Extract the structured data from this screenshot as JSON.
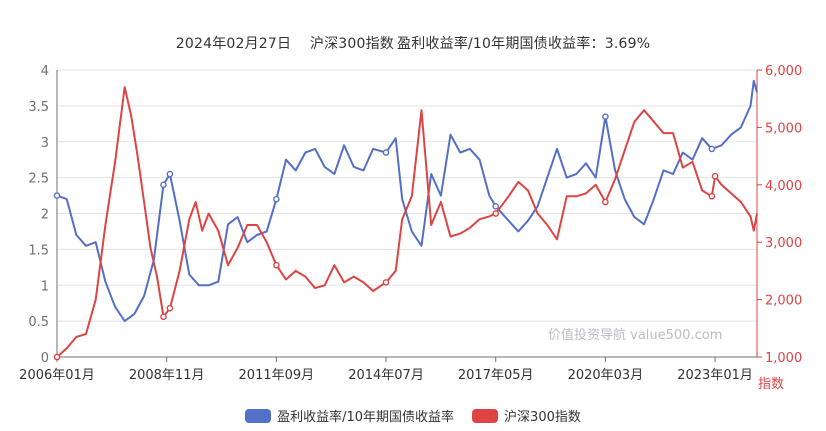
{
  "header": {
    "date": "2024年02月27日",
    "index_label": "沪深300指数",
    "ratio_text": "盈利收益率/10年期国债收益率：3.69%"
  },
  "watermark": "价值投资导航 value500.com",
  "colors": {
    "ratio": "#5470c6",
    "index": "#dd4444",
    "axis": "#6e7079",
    "grid": "#e3e3e3"
  },
  "legend": [
    {
      "name": "盈利收益率/10年期国债收益率",
      "color": "#5470c6"
    },
    {
      "name": "沪深300指数",
      "color": "#dd4444"
    }
  ],
  "chart_data": {
    "type": "line",
    "x_ticks": [
      "2006年01月",
      "2008年11月",
      "2011年09月",
      "2014年07月",
      "2017年05月",
      "2020年03月",
      "2023年01月"
    ],
    "left_axis": {
      "min": 0,
      "max": 4,
      "ticks": [
        "0",
        "0.5",
        "1",
        "1.5",
        "2",
        "2.5",
        "3",
        "3.5",
        "4"
      ]
    },
    "right_axis": {
      "name": "指数",
      "min": 1000,
      "max": 6000,
      "ticks": [
        "1,000",
        "2,000",
        "3,000",
        "4,000",
        "5,000",
        "6,000"
      ]
    },
    "series": [
      {
        "name": "盈利收益率/10年期国债收益率",
        "axis": "left",
        "points": [
          [
            "2006-01",
            2.25
          ],
          [
            "2006-04",
            2.2
          ],
          [
            "2006-07",
            1.7
          ],
          [
            "2006-10",
            1.55
          ],
          [
            "2007-01",
            1.6
          ],
          [
            "2007-04",
            1.05
          ],
          [
            "2007-07",
            0.7
          ],
          [
            "2007-10",
            0.5
          ],
          [
            "2008-01",
            0.6
          ],
          [
            "2008-04",
            0.85
          ],
          [
            "2008-07",
            1.35
          ],
          [
            "2008-10",
            2.4
          ],
          [
            "2008-12",
            2.55
          ],
          [
            "2009-03",
            1.9
          ],
          [
            "2009-06",
            1.15
          ],
          [
            "2009-09",
            1.0
          ],
          [
            "2009-12",
            1.0
          ],
          [
            "2010-03",
            1.05
          ],
          [
            "2010-06",
            1.85
          ],
          [
            "2010-09",
            1.95
          ],
          [
            "2010-12",
            1.6
          ],
          [
            "2011-03",
            1.7
          ],
          [
            "2011-06",
            1.75
          ],
          [
            "2011-09",
            2.2
          ],
          [
            "2011-12",
            2.75
          ],
          [
            "2012-03",
            2.6
          ],
          [
            "2012-06",
            2.85
          ],
          [
            "2012-09",
            2.9
          ],
          [
            "2012-12",
            2.65
          ],
          [
            "2013-03",
            2.55
          ],
          [
            "2013-06",
            2.95
          ],
          [
            "2013-09",
            2.65
          ],
          [
            "2013-12",
            2.6
          ],
          [
            "2014-03",
            2.9
          ],
          [
            "2014-07",
            2.85
          ],
          [
            "2014-10",
            3.05
          ],
          [
            "2014-12",
            2.2
          ],
          [
            "2015-03",
            1.75
          ],
          [
            "2015-06",
            1.55
          ],
          [
            "2015-09",
            2.55
          ],
          [
            "2015-12",
            2.25
          ],
          [
            "2016-03",
            3.1
          ],
          [
            "2016-06",
            2.85
          ],
          [
            "2016-09",
            2.9
          ],
          [
            "2016-12",
            2.75
          ],
          [
            "2017-03",
            2.25
          ],
          [
            "2017-05",
            2.1
          ],
          [
            "2017-09",
            1.9
          ],
          [
            "2017-12",
            1.75
          ],
          [
            "2018-03",
            1.9
          ],
          [
            "2018-06",
            2.1
          ],
          [
            "2018-09",
            2.5
          ],
          [
            "2018-12",
            2.9
          ],
          [
            "2019-03",
            2.5
          ],
          [
            "2019-06",
            2.55
          ],
          [
            "2019-09",
            2.7
          ],
          [
            "2019-12",
            2.5
          ],
          [
            "2020-03",
            3.35
          ],
          [
            "2020-06",
            2.6
          ],
          [
            "2020-09",
            2.2
          ],
          [
            "2020-12",
            1.95
          ],
          [
            "2021-03",
            1.85
          ],
          [
            "2021-06",
            2.2
          ],
          [
            "2021-09",
            2.6
          ],
          [
            "2021-12",
            2.55
          ],
          [
            "2022-03",
            2.85
          ],
          [
            "2022-06",
            2.75
          ],
          [
            "2022-09",
            3.05
          ],
          [
            "2022-12",
            2.9
          ],
          [
            "2023-03",
            2.95
          ],
          [
            "2023-06",
            3.1
          ],
          [
            "2023-09",
            3.2
          ],
          [
            "2023-12",
            3.5
          ],
          [
            "2024-01",
            3.85
          ],
          [
            "2024-02",
            3.69
          ]
        ]
      },
      {
        "name": "沪深300指数",
        "axis": "right",
        "points": [
          [
            "2006-01",
            1000
          ],
          [
            "2006-04",
            1150
          ],
          [
            "2006-07",
            1350
          ],
          [
            "2006-10",
            1400
          ],
          [
            "2007-01",
            2000
          ],
          [
            "2007-04",
            3300
          ],
          [
            "2007-07",
            4400
          ],
          [
            "2007-10",
            5700
          ],
          [
            "2007-12",
            5200
          ],
          [
            "2008-02",
            4500
          ],
          [
            "2008-04",
            3700
          ],
          [
            "2008-06",
            2900
          ],
          [
            "2008-08",
            2400
          ],
          [
            "2008-10",
            1700
          ],
          [
            "2008-12",
            1850
          ],
          [
            "2009-03",
            2500
          ],
          [
            "2009-06",
            3400
          ],
          [
            "2009-08",
            3700
          ],
          [
            "2009-10",
            3200
          ],
          [
            "2009-12",
            3500
          ],
          [
            "2010-03",
            3200
          ],
          [
            "2010-06",
            2600
          ],
          [
            "2010-09",
            2900
          ],
          [
            "2010-12",
            3300
          ],
          [
            "2011-03",
            3300
          ],
          [
            "2011-06",
            3000
          ],
          [
            "2011-09",
            2600
          ],
          [
            "2011-12",
            2350
          ],
          [
            "2012-03",
            2500
          ],
          [
            "2012-06",
            2400
          ],
          [
            "2012-09",
            2200
          ],
          [
            "2012-12",
            2250
          ],
          [
            "2013-03",
            2600
          ],
          [
            "2013-06",
            2300
          ],
          [
            "2013-09",
            2400
          ],
          [
            "2013-12",
            2300
          ],
          [
            "2014-03",
            2150
          ],
          [
            "2014-07",
            2300
          ],
          [
            "2014-10",
            2500
          ],
          [
            "2014-12",
            3400
          ],
          [
            "2015-03",
            3800
          ],
          [
            "2015-06",
            5300
          ],
          [
            "2015-09",
            3300
          ],
          [
            "2015-12",
            3700
          ],
          [
            "2016-03",
            3100
          ],
          [
            "2016-06",
            3150
          ],
          [
            "2016-09",
            3250
          ],
          [
            "2016-12",
            3400
          ],
          [
            "2017-03",
            3450
          ],
          [
            "2017-05",
            3500
          ],
          [
            "2017-09",
            3800
          ],
          [
            "2017-12",
            4050
          ],
          [
            "2018-03",
            3900
          ],
          [
            "2018-06",
            3500
          ],
          [
            "2018-09",
            3300
          ],
          [
            "2018-12",
            3050
          ],
          [
            "2019-03",
            3800
          ],
          [
            "2019-06",
            3800
          ],
          [
            "2019-09",
            3850
          ],
          [
            "2019-12",
            4000
          ],
          [
            "2020-03",
            3700
          ],
          [
            "2020-06",
            4100
          ],
          [
            "2020-09",
            4600
          ],
          [
            "2020-12",
            5100
          ],
          [
            "2021-03",
            5300
          ],
          [
            "2021-06",
            5100
          ],
          [
            "2021-09",
            4900
          ],
          [
            "2021-12",
            4900
          ],
          [
            "2022-03",
            4300
          ],
          [
            "2022-06",
            4400
          ],
          [
            "2022-09",
            3900
          ],
          [
            "2022-12",
            3800
          ],
          [
            "2023-01",
            4150
          ],
          [
            "2023-03",
            4000
          ],
          [
            "2023-06",
            3850
          ],
          [
            "2023-09",
            3700
          ],
          [
            "2023-12",
            3450
          ],
          [
            "2024-01",
            3200
          ],
          [
            "2024-02",
            3500
          ]
        ]
      }
    ]
  }
}
